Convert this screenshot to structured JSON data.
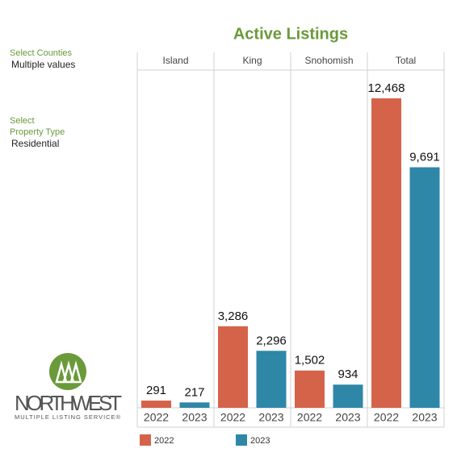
{
  "filters": [
    {
      "label": "Select Counties",
      "value": "Multiple values"
    },
    {
      "label": "Select\nProperty Type",
      "value": "Residential"
    }
  ],
  "logo": {
    "name": "NORTHWEST",
    "tagline": "MULTIPLE LISTING SERVICE®"
  },
  "chart_data": {
    "type": "bar",
    "title": "Active Listings",
    "categories": [
      "Island",
      "King",
      "Snohomish",
      "Total"
    ],
    "series": [
      {
        "name": "2022",
        "color": "#d5634a",
        "values": [
          291,
          3286,
          1502,
          12468
        ],
        "value_labels": [
          "291",
          "3,286",
          "1,502",
          "12,468"
        ]
      },
      {
        "name": "2023",
        "color": "#2f87a8",
        "values": [
          217,
          2296,
          934,
          9691
        ],
        "value_labels": [
          "217",
          "2,296",
          "934",
          "9,691"
        ]
      }
    ]
  }
}
